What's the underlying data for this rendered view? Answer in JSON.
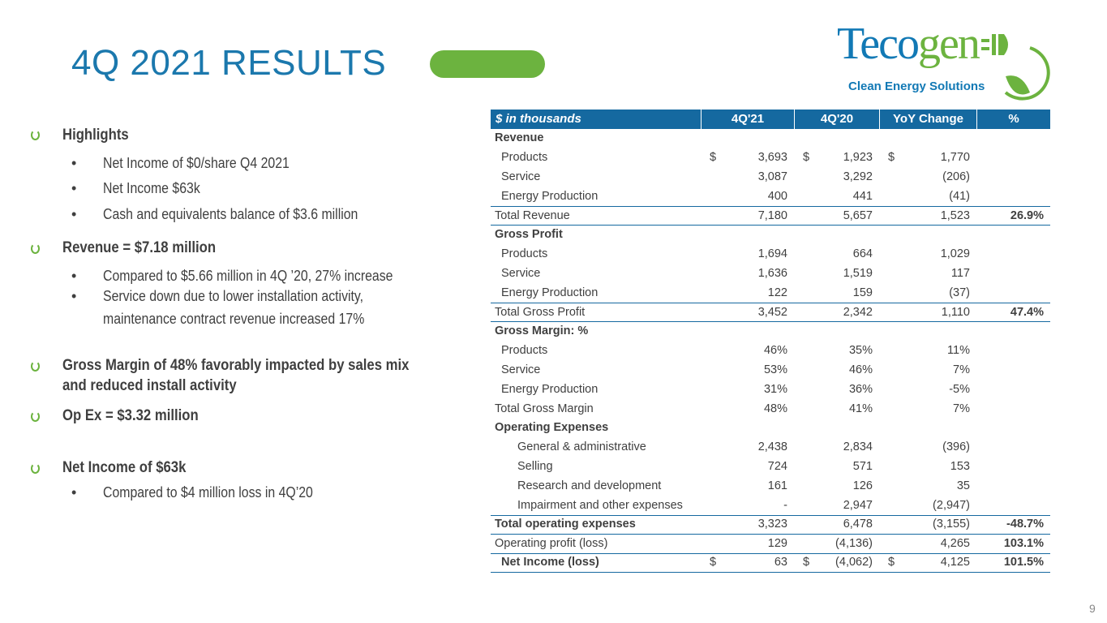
{
  "title": "4Q 2021 RESULTS",
  "logo": {
    "word1": "Teco",
    "word2": "gen",
    "tagline": "Clean Energy Solutions"
  },
  "highlights": [
    {
      "heading": "Highlights",
      "bullets": [
        "Net Income of $0/share Q4 2021",
        "Net Income $63k",
        "Cash and equivalents balance of $3.6 million"
      ]
    },
    {
      "heading": "Revenue = $7.18 million",
      "bullets": [
        "Compared to $5.66 million in 4Q ’20, 27% increase",
        "Service down due  to lower installation activity,",
        "maintenance contract revenue increased 17%"
      ]
    },
    {
      "heading": "Gross Margin of 48% favorably impacted by sales mix",
      "heading2": "and reduced install activity"
    },
    {
      "heading": "Op Ex = $3.32 million"
    },
    {
      "heading": "Net Income of $63k",
      "bullets": [
        "Compared to $4 million loss in 4Q’20"
      ]
    }
  ],
  "table": {
    "headers": [
      "$ in thousands",
      "4Q'21",
      "4Q'20",
      "YoY Change",
      "%"
    ],
    "rows": [
      {
        "l": "Revenue",
        "i": 0,
        "b": true,
        "v": [
          "",
          "",
          ""
        ],
        "p": ""
      },
      {
        "l": "Products",
        "i": 1,
        "v": [
          "3,693",
          "1,923",
          "1,770"
        ],
        "p": "",
        "d": true
      },
      {
        "l": "Service",
        "i": 1,
        "v": [
          "3,087",
          "3,292",
          "(206)"
        ],
        "p": ""
      },
      {
        "l": "Energy Production",
        "i": 1,
        "v": [
          "400",
          "441",
          "(41)"
        ],
        "p": ""
      },
      {
        "l": "Total Revenue",
        "i": 0,
        "v": [
          "7,180",
          "5,657",
          "1,523"
        ],
        "p": "26.9%",
        "bt": true,
        "bb": true
      },
      {
        "l": "Gross Profit",
        "i": 0,
        "b": true,
        "v": [
          "",
          "",
          ""
        ],
        "p": ""
      },
      {
        "l": "Products",
        "i": 1,
        "v": [
          "1,694",
          "664",
          "1,029"
        ],
        "p": ""
      },
      {
        "l": "Service",
        "i": 1,
        "v": [
          "1,636",
          "1,519",
          "117"
        ],
        "p": ""
      },
      {
        "l": "Energy Production",
        "i": 1,
        "v": [
          "122",
          "159",
          "(37)"
        ],
        "p": ""
      },
      {
        "l": "Total Gross Profit",
        "i": 0,
        "v": [
          "3,452",
          "2,342",
          "1,110"
        ],
        "p": "47.4%",
        "bt": true,
        "bb": true
      },
      {
        "l": "Gross Margin: %",
        "i": 0,
        "b": true,
        "v": [
          "",
          "",
          ""
        ],
        "p": ""
      },
      {
        "l": "Products",
        "i": 1,
        "v": [
          "46%",
          "35%",
          "11%"
        ],
        "p": ""
      },
      {
        "l": "Service",
        "i": 1,
        "v": [
          "53%",
          "46%",
          "7%"
        ],
        "p": ""
      },
      {
        "l": "Energy Production",
        "i": 1,
        "v": [
          "31%",
          "36%",
          "-5%"
        ],
        "p": ""
      },
      {
        "l": "Total Gross Margin",
        "i": 0,
        "v": [
          "48%",
          "41%",
          "7%"
        ],
        "p": ""
      },
      {
        "l": "Operating Expenses",
        "i": 0,
        "b": true,
        "v": [
          "",
          "",
          ""
        ],
        "p": ""
      },
      {
        "l": "General & administrative",
        "i": 2,
        "v": [
          "2,438",
          "2,834",
          "(396)"
        ],
        "p": ""
      },
      {
        "l": "Selling",
        "i": 2,
        "v": [
          "724",
          "571",
          "153"
        ],
        "p": ""
      },
      {
        "l": "Research and development",
        "i": 2,
        "v": [
          "161",
          "126",
          "35"
        ],
        "p": ""
      },
      {
        "l": "Impairment and other expenses",
        "i": 2,
        "v": [
          "-",
          "2,947",
          "(2,947)"
        ],
        "p": ""
      },
      {
        "l": "Total operating expenses",
        "i": 0,
        "b": true,
        "v": [
          "3,323",
          "6,478",
          "(3,155)"
        ],
        "p": "-48.7%",
        "bt": true,
        "bb": true
      },
      {
        "l": "Operating profit (loss)",
        "i": 0,
        "v": [
          "129",
          "(4,136)",
          "4,265"
        ],
        "p": "103.1%",
        "bb": true
      },
      {
        "l": "Net Income (loss)",
        "i": 1,
        "b": true,
        "v": [
          "63",
          "(4,062)",
          "4,125"
        ],
        "p": "101.5%",
        "d": true,
        "bb": true
      }
    ],
    "currency": "$"
  },
  "page_number": "9"
}
